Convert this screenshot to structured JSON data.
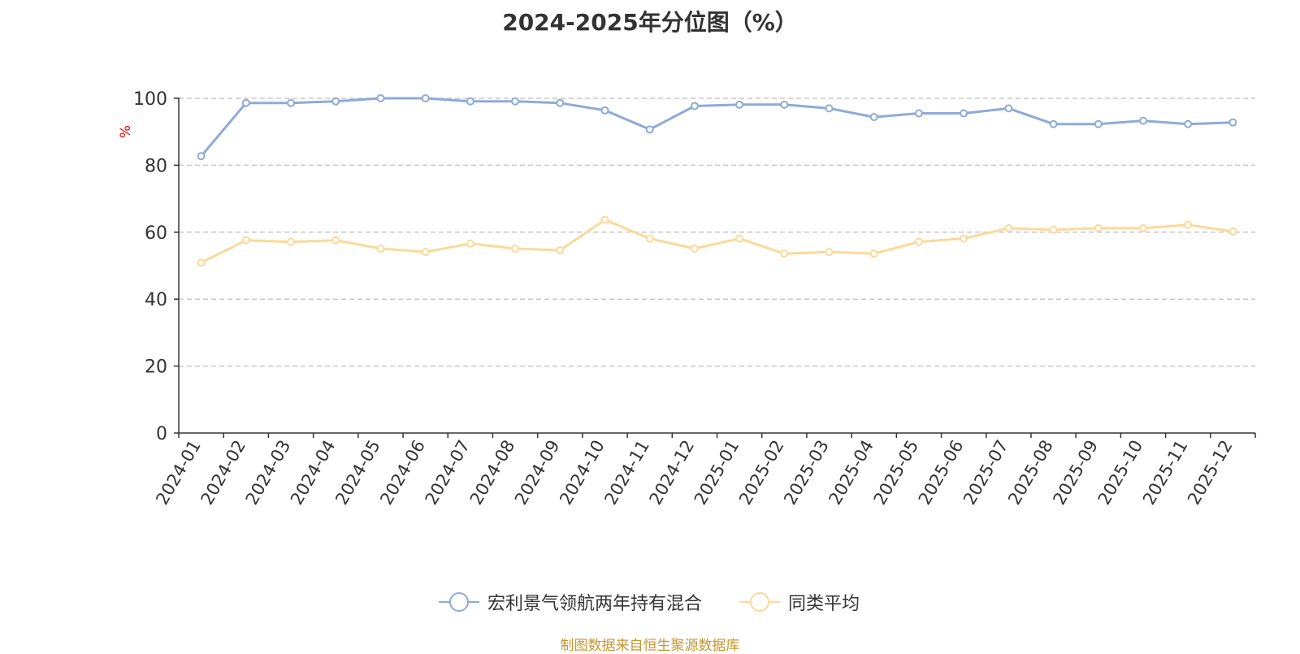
{
  "chart_data": {
    "type": "line",
    "title": "2024-2025年分位图（%）",
    "ylabel": "%",
    "xlabel": "",
    "ylim": [
      0,
      100
    ],
    "yticks": [
      0,
      20,
      40,
      60,
      80,
      100
    ],
    "grid": true,
    "legend_position": "bottom",
    "categories": [
      "2024-01",
      "2024-02",
      "2024-03",
      "2024-04",
      "2024-05",
      "2024-06",
      "2024-07",
      "2024-08",
      "2024-09",
      "2024-10",
      "2024-11",
      "2024-12",
      "2025-01",
      "2025-02",
      "2025-03",
      "2025-04",
      "2025-05",
      "2025-06",
      "2025-07",
      "2025-08",
      "2025-09",
      "2025-10",
      "2025-11",
      "2025-12"
    ],
    "series": [
      {
        "name": "宏利景气领航两年持有混合",
        "color": "#8eaad9",
        "values": [
          82.7,
          98.6,
          98.6,
          99.1,
          100.0,
          100.0,
          99.1,
          99.1,
          98.6,
          96.4,
          90.7,
          97.7,
          98.1,
          98.1,
          97.0,
          94.4,
          95.5,
          95.5,
          97.0,
          92.3,
          92.3,
          93.3,
          92.3,
          92.8
        ]
      },
      {
        "name": "同类平均",
        "color": "#fcd999",
        "values": [
          50.9,
          57.6,
          57.1,
          57.6,
          55.1,
          54.1,
          56.6,
          55.1,
          54.6,
          63.7,
          58.1,
          55.1,
          58.1,
          53.6,
          54.1,
          53.6,
          57.1,
          58.1,
          61.2,
          60.7,
          61.2,
          61.2,
          62.2,
          60.2
        ]
      }
    ]
  },
  "source_note": "制图数据来自恒生聚源数据库"
}
